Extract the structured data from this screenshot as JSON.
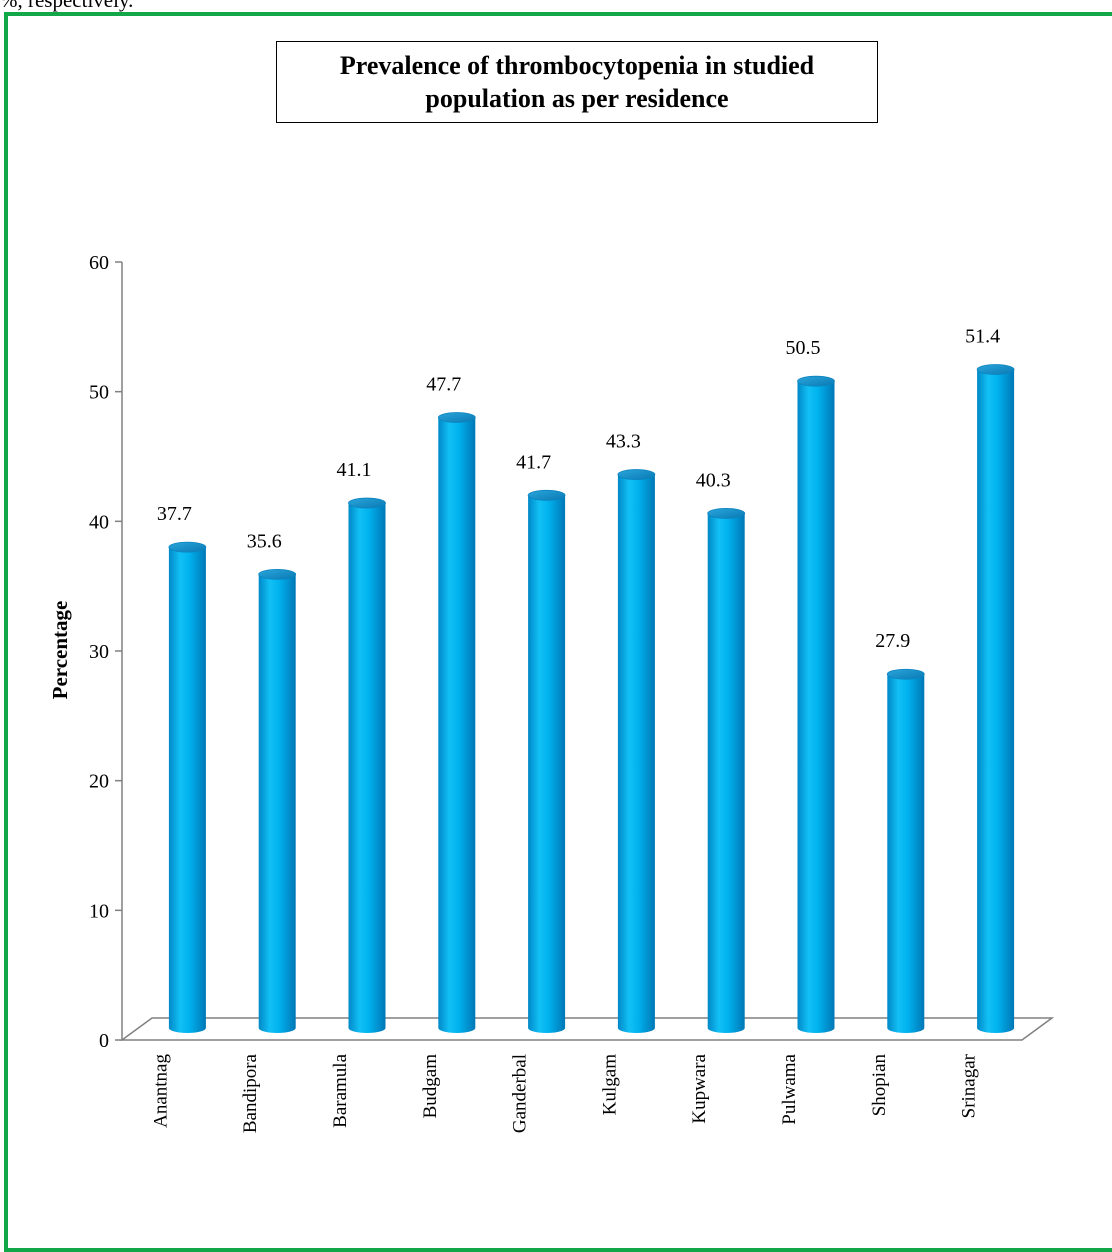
{
  "page": {
    "top_text": "%, respectively."
  },
  "chart_data": {
    "type": "bar",
    "title": "Prevalence of thrombocytopenia in studied population as per residence",
    "ylabel": "Percentage",
    "xlabel": "",
    "categories": [
      "Anantnag",
      "Bandipora",
      "Baramula",
      "Budgam",
      "Ganderbal",
      "Kulgam",
      "Kupwara",
      "Pulwama",
      "Shopian",
      "Srinagar"
    ],
    "values": [
      37.7,
      35.6,
      41.1,
      47.7,
      41.7,
      43.3,
      40.3,
      50.5,
      27.9,
      51.4
    ],
    "data_labels": [
      "37.7",
      "35.6",
      "41.1",
      "47.7",
      "41.7",
      "43.3",
      "40.3",
      "50.5",
      "27.9",
      "51.4"
    ],
    "ylim": [
      0,
      60
    ],
    "yticks": [
      0,
      10,
      20,
      30,
      40,
      50,
      60
    ],
    "grid": false,
    "legend": "none",
    "style": "3d-cylinder",
    "colors": {
      "bar": "#00a8e6",
      "bar_top": "#1d8fc9",
      "axis": "#808080",
      "frame": "#12a84a"
    }
  }
}
